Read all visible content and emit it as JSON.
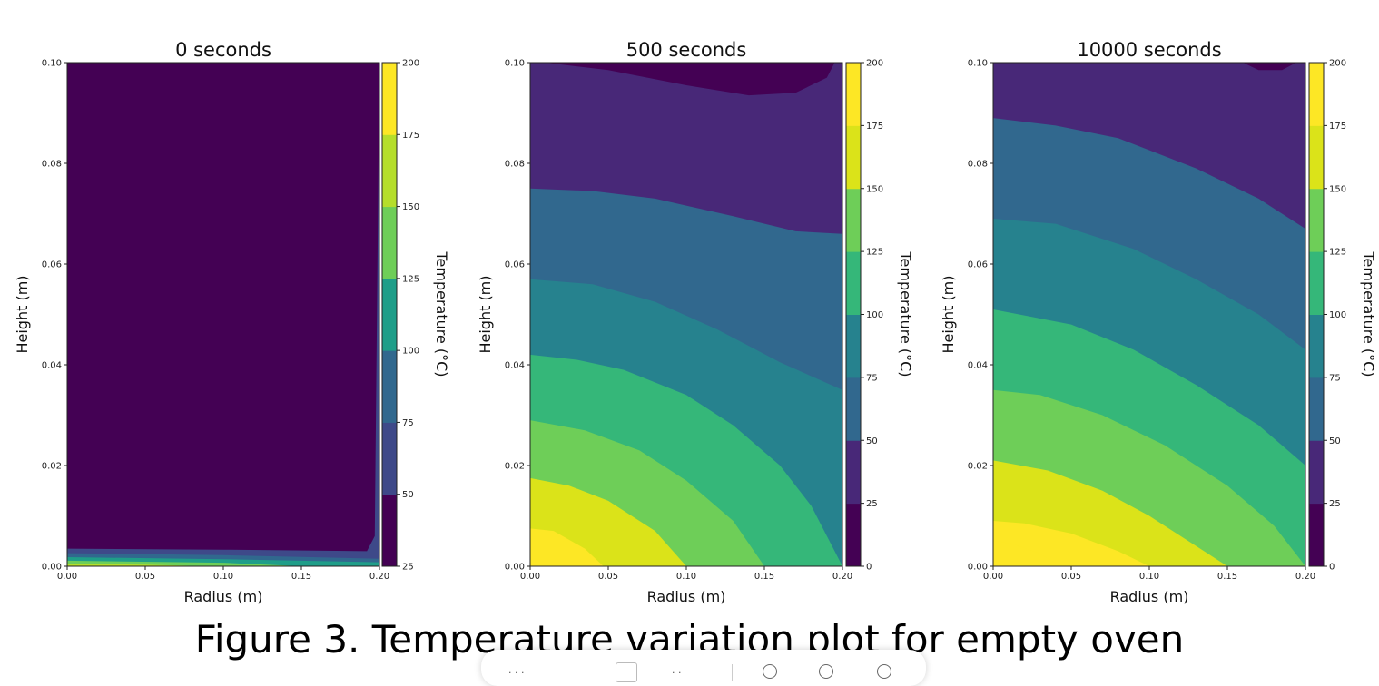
{
  "figure": {
    "caption": "Figure 3. Temperature variation plot for empty oven"
  },
  "colors": {
    "viridis": [
      "#440154",
      "#482878",
      "#3e4989",
      "#31688e",
      "#26828e",
      "#1f9e89",
      "#35b779",
      "#6ece58",
      "#b5de2b",
      "#dbe319",
      "#fde725"
    ]
  },
  "chart_data": [
    {
      "type": "contourf",
      "title": "0 seconds",
      "xlabel": "Radius (m)",
      "ylabel": "Height (m)",
      "xlim": [
        0.0,
        0.2
      ],
      "ylim": [
        0.0,
        0.1
      ],
      "xticks": [
        "0.00",
        "0.05",
        "0.10",
        "0.15",
        "0.20"
      ],
      "yticks": [
        "0.00",
        "0.02",
        "0.04",
        "0.06",
        "0.08",
        "0.10"
      ],
      "colorbar": {
        "label": "Temperature (°C)",
        "levels": [
          25,
          50,
          75,
          100,
          125,
          150,
          175,
          200
        ],
        "ticks": [
          "25",
          "50",
          "75",
          "100",
          "125",
          "150",
          "175",
          "200"
        ]
      },
      "contours": [
        {
          "level_index": 0,
          "points": [
            [
              0.0,
              0.0
            ],
            [
              0.2,
              0.0
            ],
            [
              0.2,
              0.1
            ],
            [
              0.0,
              0.1
            ]
          ]
        },
        {
          "level_index": 1,
          "points": [
            [
              0.0,
              0.0
            ],
            [
              0.2,
              0.0
            ],
            [
              0.2,
              0.1
            ],
            [
              0.197,
              0.006
            ],
            [
              0.192,
              0.003
            ],
            [
              0.1,
              0.0033
            ],
            [
              0.0,
              0.0035
            ]
          ]
        },
        {
          "level_index": 2,
          "points": [
            [
              0.0,
              0.0
            ],
            [
              0.2,
              0.0
            ],
            [
              0.2,
              0.0015
            ],
            [
              0.1,
              0.0022
            ],
            [
              0.0,
              0.0026
            ]
          ]
        },
        {
          "level_index": 3,
          "points": [
            [
              0.0,
              0.0
            ],
            [
              0.2,
              0.0
            ],
            [
              0.2,
              0.0008
            ],
            [
              0.1,
              0.0014
            ],
            [
              0.0,
              0.0018
            ]
          ]
        },
        {
          "level_index": 4,
          "points": [
            [
              0.0,
              0.0
            ],
            [
              0.15,
              0.0
            ],
            [
              0.1,
              0.0007
            ],
            [
              0.0,
              0.0011
            ]
          ]
        },
        {
          "level_index": 5,
          "points": [
            [
              0.0,
              0.0
            ],
            [
              0.09,
              0.0
            ],
            [
              0.05,
              0.0003
            ],
            [
              0.0,
              0.0005
            ]
          ]
        }
      ]
    },
    {
      "type": "contourf",
      "title": "500 seconds",
      "xlabel": "Radius (m)",
      "ylabel": "Height (m)",
      "xlim": [
        0.0,
        0.2
      ],
      "ylim": [
        0.0,
        0.1
      ],
      "xticks": [
        "0.00",
        "0.05",
        "0.10",
        "0.15",
        "0.20"
      ],
      "yticks": [
        "0.00",
        "0.02",
        "0.04",
        "0.06",
        "0.08",
        "0.10"
      ],
      "colorbar": {
        "label": "Temperature (°C)",
        "levels": [
          0,
          25,
          50,
          75,
          100,
          125,
          150,
          175,
          200
        ],
        "ticks": [
          "0",
          "25",
          "50",
          "75",
          "100",
          "125",
          "150",
          "175",
          "200"
        ]
      },
      "contours": [
        {
          "level_index": 0,
          "points": [
            [
              0.0,
              0.0
            ],
            [
              0.2,
              0.0
            ],
            [
              0.2,
              0.1
            ],
            [
              0.0,
              0.1
            ]
          ]
        },
        {
          "level_index": 1,
          "points": [
            [
              0.0,
              0.0
            ],
            [
              0.2,
              0.0
            ],
            [
              0.2,
              0.1
            ],
            [
              0.195,
              0.1
            ],
            [
              0.19,
              0.097
            ],
            [
              0.17,
              0.094
            ],
            [
              0.14,
              0.0935
            ],
            [
              0.1,
              0.0955
            ],
            [
              0.05,
              0.0985
            ],
            [
              0.01,
              0.1
            ],
            [
              0.0,
              0.1
            ]
          ]
        },
        {
          "level_index": 2,
          "points": [
            [
              0.0,
              0.0
            ],
            [
              0.2,
              0.0
            ],
            [
              0.2,
              0.066
            ],
            [
              0.17,
              0.0665
            ],
            [
              0.13,
              0.0695
            ],
            [
              0.08,
              0.073
            ],
            [
              0.04,
              0.0745
            ],
            [
              0.0,
              0.075
            ]
          ]
        },
        {
          "level_index": 3,
          "points": [
            [
              0.0,
              0.0
            ],
            [
              0.2,
              0.0
            ],
            [
              0.2,
              0.035
            ],
            [
              0.16,
              0.0405
            ],
            [
              0.12,
              0.047
            ],
            [
              0.08,
              0.0525
            ],
            [
              0.04,
              0.056
            ],
            [
              0.0,
              0.057
            ]
          ]
        },
        {
          "level_index": 4,
          "points": [
            [
              0.0,
              0.0
            ],
            [
              0.2,
              0.0
            ],
            [
              0.18,
              0.012
            ],
            [
              0.16,
              0.02
            ],
            [
              0.13,
              0.028
            ],
            [
              0.1,
              0.034
            ],
            [
              0.06,
              0.039
            ],
            [
              0.03,
              0.041
            ],
            [
              0.0,
              0.042
            ]
          ]
        },
        {
          "level_index": 5,
          "points": [
            [
              0.0,
              0.0
            ],
            [
              0.15,
              0.0
            ],
            [
              0.13,
              0.009
            ],
            [
              0.1,
              0.017
            ],
            [
              0.07,
              0.023
            ],
            [
              0.035,
              0.027
            ],
            [
              0.0,
              0.029
            ]
          ]
        },
        {
          "level_index": 6,
          "points": [
            [
              0.0,
              0.0
            ],
            [
              0.1,
              0.0
            ],
            [
              0.08,
              0.007
            ],
            [
              0.05,
              0.013
            ],
            [
              0.025,
              0.016
            ],
            [
              0.0,
              0.0175
            ]
          ]
        },
        {
          "level_index": 7,
          "points": [
            [
              0.0,
              0.0
            ],
            [
              0.047,
              0.0
            ],
            [
              0.035,
              0.0035
            ],
            [
              0.015,
              0.007
            ],
            [
              0.0,
              0.0075
            ]
          ]
        }
      ]
    },
    {
      "type": "contourf",
      "title": "10000 seconds",
      "xlabel": "Radius (m)",
      "ylabel": "Height (m)",
      "xlim": [
        0.0,
        0.2
      ],
      "ylim": [
        0.0,
        0.1
      ],
      "xticks": [
        "0.00",
        "0.05",
        "0.10",
        "0.15",
        "0.20"
      ],
      "yticks": [
        "0.00",
        "0.02",
        "0.04",
        "0.06",
        "0.08",
        "0.10"
      ],
      "colorbar": {
        "label": "Temperature (°C)",
        "levels": [
          0,
          25,
          50,
          75,
          100,
          125,
          150,
          175,
          200
        ],
        "ticks": [
          "0",
          "25",
          "50",
          "75",
          "100",
          "125",
          "150",
          "175",
          "200"
        ]
      },
      "contours": [
        {
          "level_index": 0,
          "points": [
            [
              0.0,
              0.0
            ],
            [
              0.2,
              0.0
            ],
            [
              0.2,
              0.1
            ],
            [
              0.0,
              0.1
            ]
          ]
        },
        {
          "level_index": 1,
          "points": [
            [
              0.0,
              0.0
            ],
            [
              0.2,
              0.0
            ],
            [
              0.2,
              0.1
            ],
            [
              0.194,
              0.1
            ],
            [
              0.185,
              0.0985
            ],
            [
              0.17,
              0.0985
            ],
            [
              0.16,
              0.1
            ],
            [
              0.0,
              0.1
            ]
          ]
        },
        {
          "level_index": 2,
          "points": [
            [
              0.0,
              0.0
            ],
            [
              0.2,
              0.0
            ],
            [
              0.2,
              0.067
            ],
            [
              0.17,
              0.073
            ],
            [
              0.13,
              0.079
            ],
            [
              0.08,
              0.085
            ],
            [
              0.04,
              0.0875
            ],
            [
              0.0,
              0.089
            ]
          ]
        },
        {
          "level_index": 3,
          "points": [
            [
              0.0,
              0.0
            ],
            [
              0.2,
              0.0
            ],
            [
              0.2,
              0.043
            ],
            [
              0.17,
              0.05
            ],
            [
              0.13,
              0.057
            ],
            [
              0.09,
              0.063
            ],
            [
              0.04,
              0.068
            ],
            [
              0.0,
              0.069
            ]
          ]
        },
        {
          "level_index": 4,
          "points": [
            [
              0.0,
              0.0
            ],
            [
              0.2,
              0.0
            ],
            [
              0.2,
              0.02
            ],
            [
              0.17,
              0.028
            ],
            [
              0.13,
              0.036
            ],
            [
              0.09,
              0.043
            ],
            [
              0.05,
              0.048
            ],
            [
              0.0,
              0.051
            ]
          ]
        },
        {
          "level_index": 5,
          "points": [
            [
              0.0,
              0.0
            ],
            [
              0.2,
              0.0
            ],
            [
              0.18,
              0.008
            ],
            [
              0.15,
              0.016
            ],
            [
              0.11,
              0.024
            ],
            [
              0.07,
              0.03
            ],
            [
              0.03,
              0.034
            ],
            [
              0.0,
              0.035
            ]
          ]
        },
        {
          "level_index": 6,
          "points": [
            [
              0.0,
              0.0
            ],
            [
              0.15,
              0.0
            ],
            [
              0.13,
              0.004
            ],
            [
              0.1,
              0.01
            ],
            [
              0.07,
              0.015
            ],
            [
              0.035,
              0.019
            ],
            [
              0.0,
              0.021
            ]
          ]
        },
        {
          "level_index": 7,
          "points": [
            [
              0.0,
              0.0
            ],
            [
              0.1,
              0.0
            ],
            [
              0.08,
              0.003
            ],
            [
              0.05,
              0.0065
            ],
            [
              0.02,
              0.0085
            ],
            [
              0.0,
              0.009
            ]
          ]
        },
        {
          "level_index": 8,
          "points": [
            [
              0.0,
              0.0
            ],
            [
              0.043,
              0.0
            ],
            [
              0.03,
              0.0025
            ],
            [
              0.012,
              0.0045
            ],
            [
              0.0,
              0.005
            ]
          ]
        }
      ]
    }
  ]
}
